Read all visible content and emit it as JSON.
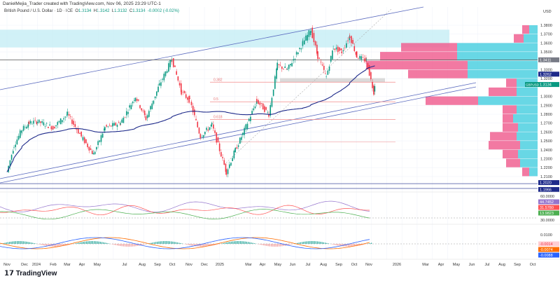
{
  "header": {
    "credit": "DanielMejia_Trader created with TradingView.com, Nov 06, 2025 23:29 UTC-1",
    "symbol": "British Pound / U.S. Dollar · 1D · ICE",
    "o_label": "O",
    "o": "1.3134",
    "h_label": "H",
    "h": "1.3142",
    "l_label": "L",
    "l": "1.3132",
    "c_label": "C",
    "c": "1.3134",
    "change": "-0.0002 (-0.02%)"
  },
  "colors": {
    "up": "#089981",
    "down": "#f23645",
    "ma": "#1e2a8a",
    "channel": "#5b6bbf",
    "fib": "#f28b8b",
    "profile_up": "#f06292",
    "profile_down": "#4dd0e1",
    "zone": "#c5eef5"
  },
  "chart_data": {
    "type": "candlestick",
    "currency": "USD",
    "ylim": [
      1.19,
      1.39
    ],
    "price_ticks": [
      "1.3800",
      "1.3700",
      "1.3600",
      "1.3500",
      "1.3300",
      "1.3200",
      "1.3000",
      "1.2900",
      "1.2800",
      "1.2700",
      "1.2600",
      "1.2500",
      "1.2400",
      "1.2300",
      "1.2200",
      "1.2100"
    ],
    "time_ticks": [
      "Nov",
      "Dec",
      "2024",
      "Feb",
      "Mar",
      "Apr",
      "May",
      "Jul",
      "Aug",
      "Sep",
      "Oct",
      "Nov",
      "Dec",
      "2025",
      "Mar",
      "Apr",
      "May",
      "Jun",
      "Jul",
      "Aug",
      "Sep",
      "Oct",
      "Nov",
      "2026",
      "Mar",
      "Apr",
      "May",
      "Jun",
      "Jul",
      "Aug",
      "Sep",
      "Oct"
    ],
    "price_series": [
      [
        "2023-11-01",
        1.215
      ],
      [
        "2023-11-15",
        1.245
      ],
      [
        "2023-12-01",
        1.263
      ],
      [
        "2023-12-15",
        1.27
      ],
      [
        "2024-01-01",
        1.272
      ],
      [
        "2024-02-01",
        1.265
      ],
      [
        "2024-03-01",
        1.28
      ],
      [
        "2024-04-01",
        1.252
      ],
      [
        "2024-04-22",
        1.235
      ],
      [
        "2024-05-15",
        1.265
      ],
      [
        "2024-06-15",
        1.27
      ],
      [
        "2024-07-15",
        1.3
      ],
      [
        "2024-08-05",
        1.275
      ],
      [
        "2024-09-01",
        1.313
      ],
      [
        "2024-09-26",
        1.342
      ],
      [
        "2024-10-15",
        1.305
      ],
      [
        "2024-11-01",
        1.295
      ],
      [
        "2024-11-22",
        1.255
      ],
      [
        "2024-12-15",
        1.268
      ],
      [
        "2025-01-13",
        1.215
      ],
      [
        "2025-01-31",
        1.24
      ],
      [
        "2025-02-15",
        1.258
      ],
      [
        "2025-03-15",
        1.295
      ],
      [
        "2025-04-08",
        1.28
      ],
      [
        "2025-04-25",
        1.335
      ],
      [
        "2025-05-15",
        1.33
      ],
      [
        "2025-06-15",
        1.36
      ],
      [
        "2025-07-01",
        1.375
      ],
      [
        "2025-07-15",
        1.345
      ],
      [
        "2025-08-01",
        1.322
      ],
      [
        "2025-08-15",
        1.355
      ],
      [
        "2025-09-01",
        1.35
      ],
      [
        "2025-09-17",
        1.368
      ],
      [
        "2025-10-01",
        1.345
      ],
      [
        "2025-10-20",
        1.34
      ],
      [
        "2025-11-04",
        1.305
      ],
      [
        "2025-11-06",
        1.3134
      ]
    ],
    "price_labels": [
      {
        "value": "1.3411",
        "color": "#787b86"
      },
      {
        "value": "1.3262",
        "color": "#1e2a8a"
      },
      {
        "value": "1.3134",
        "color": "#089981",
        "symbol": "GBPUSD"
      },
      {
        "value": "1.2020",
        "color": "#1e2a8a"
      },
      {
        "value": "1.1966",
        "color": "#1e2a8a"
      }
    ],
    "horizontal_levels": [
      1.3411,
      1.202,
      1.1966
    ],
    "fib_levels": [
      {
        "label": "0.382",
        "price": 1.316
      },
      {
        "label": "0.5",
        "price": 1.294
      },
      {
        "label": "0.618",
        "price": 1.274
      }
    ],
    "volume_profile": [
      [
        1.375,
        10,
        12
      ],
      [
        1.365,
        14,
        20
      ],
      [
        1.355,
        80,
        115
      ],
      [
        1.345,
        110,
        115
      ],
      [
        1.335,
        145,
        100
      ],
      [
        1.325,
        85,
        100
      ],
      [
        1.315,
        15,
        30
      ],
      [
        1.305,
        40,
        30
      ],
      [
        1.295,
        75,
        85
      ],
      [
        1.285,
        20,
        30
      ],
      [
        1.275,
        15,
        35
      ],
      [
        1.265,
        22,
        28
      ],
      [
        1.255,
        38,
        30
      ],
      [
        1.245,
        45,
        25
      ],
      [
        1.235,
        22,
        28
      ],
      [
        1.225,
        20,
        25
      ],
      [
        1.215,
        10,
        12
      ]
    ]
  },
  "oscillator1": {
    "top_label": "60.0000",
    "mid_label": "30.0000",
    "values": [
      {
        "value": "44.7452",
        "color": "#9575cd"
      },
      {
        "value": "31.5780",
        "color": "#ff5252"
      },
      {
        "value": "13.9823",
        "color": "#4caf50"
      }
    ]
  },
  "oscillator2": {
    "top_label": "0.0100",
    "values": [
      {
        "value": "-0.0014",
        "color": "#ffcdd2",
        "text": "#f23645"
      },
      {
        "value": "-0.0074",
        "color": "#ff6d00",
        "text": "#fff"
      },
      {
        "value": "-0.0088",
        "color": "#2962ff",
        "text": "#fff"
      }
    ]
  },
  "footer": {
    "brand": "TradingView"
  }
}
